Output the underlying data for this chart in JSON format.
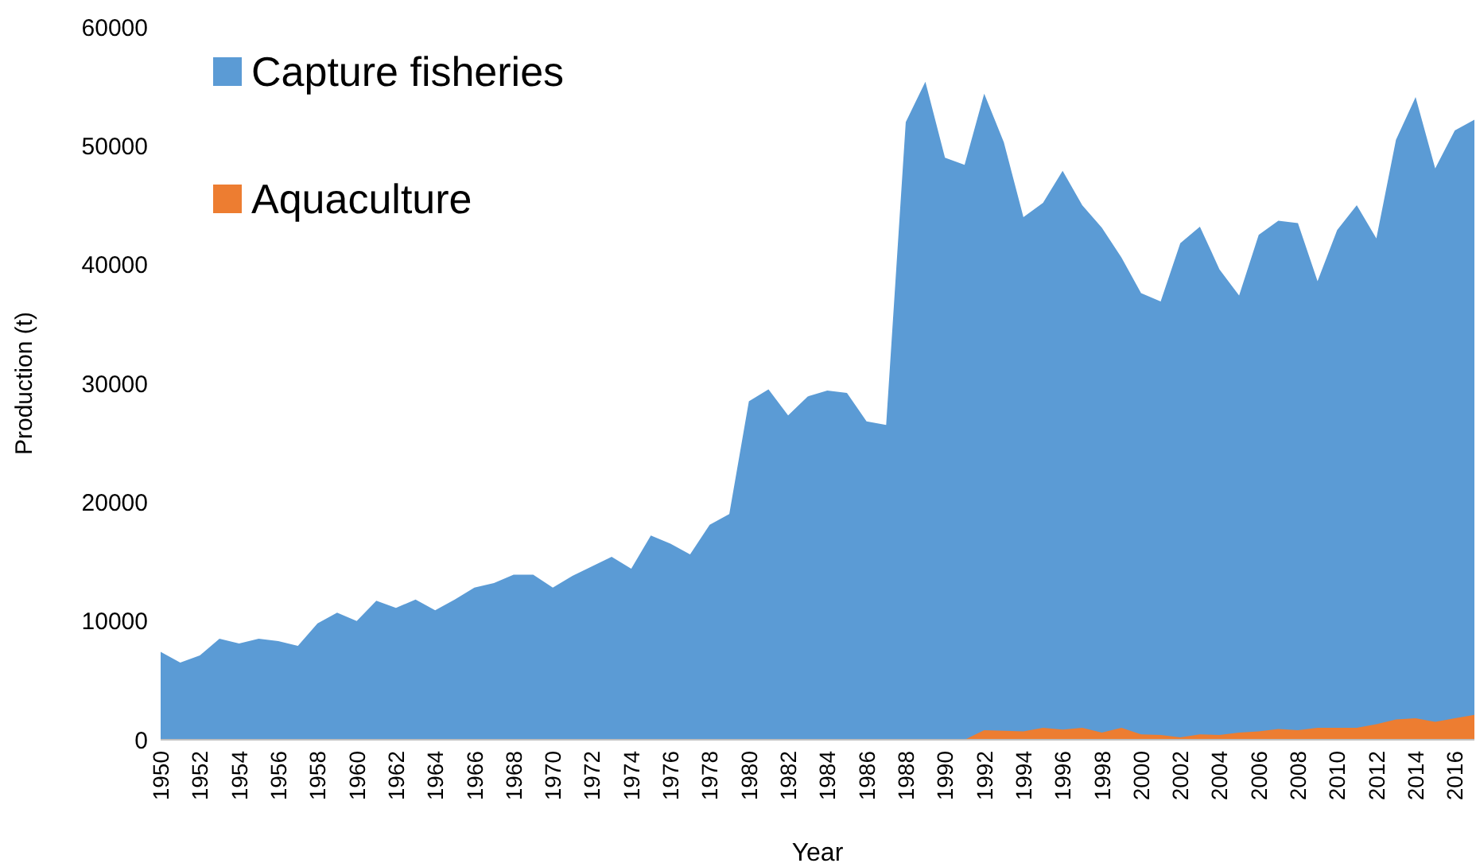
{
  "chart_data": {
    "type": "area",
    "xlabel": "Year",
    "ylabel": "Production (t)",
    "categories": [
      "1950",
      null,
      "1952",
      null,
      "1954",
      null,
      "1956",
      null,
      "1958",
      null,
      "1960",
      null,
      "1962",
      null,
      "1964",
      null,
      "1966",
      null,
      "1968",
      null,
      "1970",
      null,
      "1972",
      null,
      "1974",
      null,
      "1976",
      null,
      "1978",
      null,
      "1980",
      null,
      "1982",
      null,
      "1984",
      null,
      "1986",
      null,
      "1988",
      null,
      "1990",
      null,
      "1992",
      null,
      "1994",
      null,
      "1996",
      null,
      "1998",
      null,
      "2000",
      null,
      "2002",
      null,
      "2004",
      null,
      "2006",
      null,
      "2008",
      null,
      "2010",
      null,
      "2012",
      null,
      "2014",
      null,
      "2016",
      null
    ],
    "series": [
      {
        "name": "Capture fisheries",
        "color": "#5b9bd5",
        "values": [
          7400,
          6500,
          7100,
          8500,
          8100,
          8500,
          8300,
          7900,
          9800,
          10700,
          10000,
          11700,
          11100,
          11800,
          10900,
          11800,
          12800,
          13200,
          13900,
          13900,
          12800,
          13800,
          14600,
          15400,
          14400,
          17200,
          16500,
          15600,
          18100,
          19000,
          28500,
          29500,
          27300,
          28900,
          29400,
          29200,
          26800,
          26500,
          52000,
          55400,
          49000,
          48400,
          54400,
          50300,
          44000,
          45200,
          47900,
          45000,
          43100,
          40600,
          37600,
          36900,
          41800,
          43200,
          39600,
          37400,
          42500,
          43700,
          43500,
          38600,
          42900,
          45000,
          42200,
          50500,
          54100,
          48100,
          51300,
          52200
        ]
      },
      {
        "name": "Aquaculture",
        "color": "#ed7d31",
        "values": [
          0,
          0,
          0,
          0,
          0,
          0,
          0,
          0,
          0,
          0,
          0,
          0,
          0,
          0,
          0,
          0,
          0,
          0,
          0,
          0,
          0,
          0,
          0,
          0,
          0,
          0,
          0,
          0,
          0,
          0,
          0,
          0,
          0,
          0,
          0,
          0,
          0,
          0,
          0,
          0,
          0,
          0,
          800,
          750,
          700,
          1000,
          850,
          1000,
          600,
          1000,
          450,
          400,
          200,
          450,
          400,
          600,
          700,
          900,
          800,
          1000,
          1000,
          1000,
          1300,
          1700,
          1800,
          1500,
          1800,
          2100
        ]
      }
    ],
    "ylim": [
      0,
      60000
    ],
    "yticks": [
      0,
      10000,
      20000,
      30000,
      40000,
      50000,
      60000
    ],
    "legend": "top left"
  }
}
